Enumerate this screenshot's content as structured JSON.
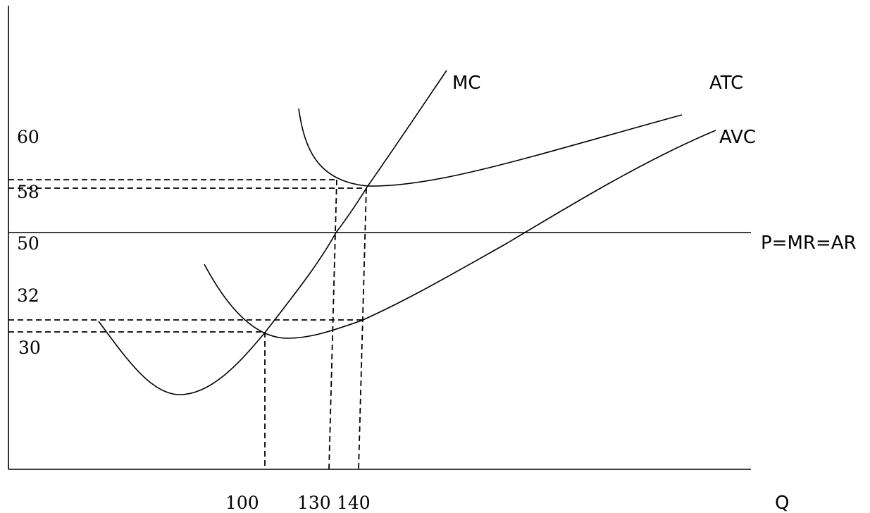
{
  "curve_labels": {
    "mc": "MC",
    "atc": "ATC",
    "avc": "AVC",
    "price_line": "P=MR=AR"
  },
  "axis_labels": {
    "x": "Q",
    "y": ""
  },
  "price_ticks": [
    "60",
    "58",
    "50",
    "32",
    "30"
  ],
  "quantity_ticks": [
    "100",
    "130",
    "140"
  ]
}
